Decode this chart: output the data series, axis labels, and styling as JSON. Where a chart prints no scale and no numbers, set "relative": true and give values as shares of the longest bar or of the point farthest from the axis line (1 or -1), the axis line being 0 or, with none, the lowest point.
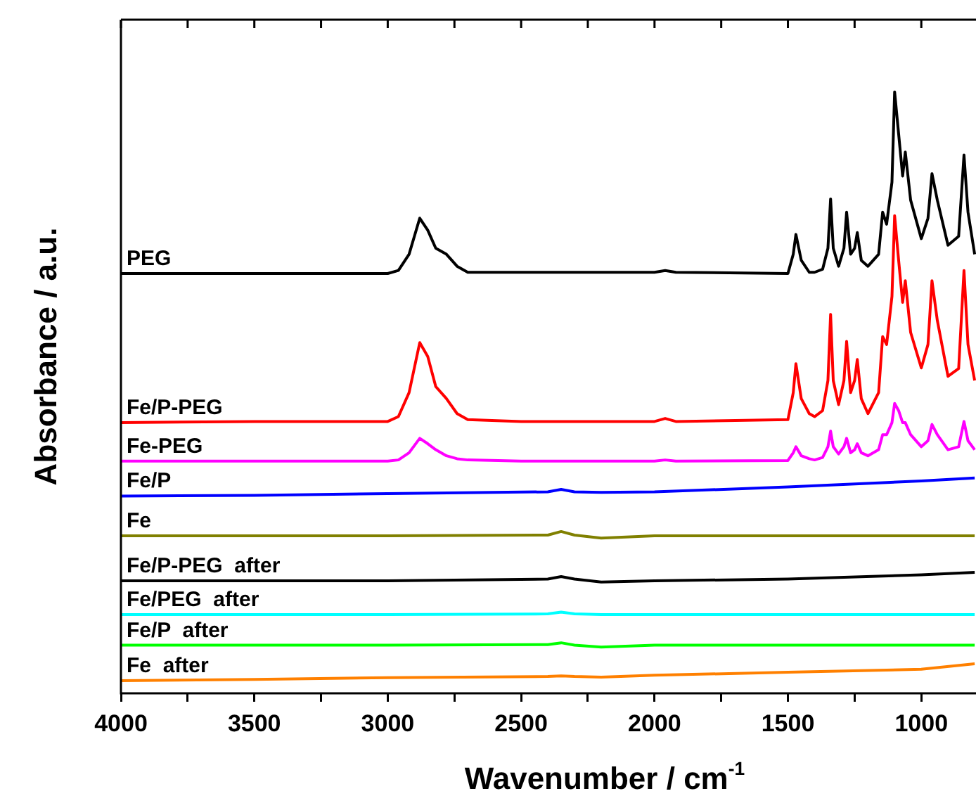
{
  "chart_data": {
    "type": "line",
    "relative": true,
    "xlabel": "Wavenumber / cm$^{-1}$",
    "ylabel": "Absorbance / a.u.",
    "xlim": [
      4000,
      795
    ],
    "xticks": [
      4000,
      {
        "value": 3750,
        "label": null
      },
      3500,
      {
        "value": 3250,
        "label": null
      },
      3000,
      {
        "value": 2750,
        "label": null
      },
      2500,
      {
        "value": 2250,
        "label": null
      },
      2000,
      {
        "value": 1750,
        "label": null
      },
      1500,
      {
        "value": 1250,
        "label": null
      },
      1000
    ],
    "grid": false,
    "legend": false,
    "marker": "none",
    "line_style": "solid",
    "x": [
      4000,
      3500,
      3000,
      2960,
      2920,
      2880,
      2850,
      2820,
      2780,
      2740,
      2700,
      2500,
      2000,
      1960,
      1920,
      1500,
      1480,
      1470,
      1450,
      1420,
      1400,
      1370,
      1350,
      1340,
      1330,
      1310,
      1290,
      1280,
      1265,
      1250,
      1240,
      1225,
      1200,
      1160,
      1145,
      1130,
      1110,
      1100,
      1085,
      1070,
      1060,
      1040,
      1000,
      975,
      960,
      940,
      900,
      860,
      840,
      825,
      800
    ],
    "series": [
      {
        "name": "PEG",
        "color": "#000000",
        "values": [
          0.698,
          0.698,
          0.698,
          0.703,
          0.73,
          0.79,
          0.77,
          0.74,
          0.73,
          0.71,
          0.7,
          0.7,
          0.7,
          0.703,
          0.7,
          0.698,
          0.73,
          0.763,
          0.72,
          0.7,
          0.7,
          0.705,
          0.74,
          0.822,
          0.74,
          0.71,
          0.74,
          0.8,
          0.73,
          0.74,
          0.766,
          0.72,
          0.71,
          0.73,
          0.8,
          0.78,
          0.85,
          1.0,
          0.93,
          0.86,
          0.9,
          0.82,
          0.756,
          0.79,
          0.864,
          0.82,
          0.745,
          0.76,
          0.895,
          0.8,
          0.73
        ]
      },
      {
        "name": "Fe/P-PEG",
        "color": "#ff0000",
        "values": [
          0.45,
          0.452,
          0.452,
          0.46,
          0.5,
          0.583,
          0.56,
          0.51,
          0.49,
          0.465,
          0.455,
          0.452,
          0.452,
          0.457,
          0.452,
          0.455,
          0.5,
          0.548,
          0.49,
          0.465,
          0.46,
          0.47,
          0.52,
          0.63,
          0.52,
          0.48,
          0.52,
          0.585,
          0.5,
          0.52,
          0.555,
          0.49,
          0.465,
          0.5,
          0.593,
          0.58,
          0.66,
          0.794,
          0.72,
          0.65,
          0.686,
          0.6,
          0.541,
          0.58,
          0.686,
          0.62,
          0.527,
          0.54,
          0.703,
          0.58,
          0.52
        ]
      },
      {
        "name": "Fe-PEG",
        "color": "#ff00ff",
        "values": [
          0.386,
          0.386,
          0.386,
          0.388,
          0.4,
          0.424,
          0.415,
          0.405,
          0.395,
          0.39,
          0.388,
          0.386,
          0.386,
          0.388,
          0.386,
          0.387,
          0.4,
          0.41,
          0.395,
          0.39,
          0.388,
          0.392,
          0.41,
          0.436,
          0.41,
          0.398,
          0.41,
          0.424,
          0.4,
          0.405,
          0.415,
          0.4,
          0.395,
          0.405,
          0.43,
          0.43,
          0.45,
          0.482,
          0.47,
          0.45,
          0.45,
          0.43,
          0.41,
          0.42,
          0.447,
          0.43,
          0.405,
          0.41,
          0.452,
          0.42,
          0.405
        ]
      },
      {
        "name": "Fe/P",
        "color": "#0000ff",
        "x": [
          4000,
          3500,
          3000,
          2400,
          2350,
          2300,
          2200,
          2000,
          1500,
          1000,
          800
        ],
        "values": [
          0.328,
          0.329,
          0.332,
          0.335,
          0.339,
          0.335,
          0.334,
          0.335,
          0.343,
          0.353,
          0.358
        ]
      },
      {
        "name": "Fe",
        "color": "#808000",
        "x": [
          4000,
          3500,
          3000,
          2400,
          2350,
          2300,
          2200,
          2000,
          1500,
          1000,
          800
        ],
        "values": [
          0.262,
          0.262,
          0.262,
          0.263,
          0.269,
          0.263,
          0.258,
          0.262,
          0.262,
          0.262,
          0.262
        ]
      },
      {
        "name": "Fe/P-PEG  after",
        "color": "#000000",
        "x": [
          4000,
          3500,
          3000,
          2400,
          2350,
          2300,
          2200,
          2000,
          1500,
          1000,
          800
        ],
        "values": [
          0.187,
          0.187,
          0.187,
          0.19,
          0.194,
          0.19,
          0.185,
          0.187,
          0.19,
          0.197,
          0.201
        ]
      },
      {
        "name": "Fe/PEG  after",
        "color": "#00ffff",
        "x": [
          4000,
          3500,
          3000,
          2400,
          2350,
          2300,
          2200,
          2000,
          1500,
          1000,
          800
        ],
        "values": [
          0.131,
          0.131,
          0.131,
          0.132,
          0.135,
          0.132,
          0.131,
          0.131,
          0.131,
          0.131,
          0.131
        ]
      },
      {
        "name": "Fe/P  after",
        "color": "#00ff00",
        "x": [
          4000,
          3500,
          3000,
          2400,
          2350,
          2300,
          2200,
          2000,
          1500,
          1000,
          800
        ],
        "values": [
          0.08,
          0.08,
          0.08,
          0.081,
          0.084,
          0.08,
          0.077,
          0.08,
          0.08,
          0.08,
          0.08
        ]
      },
      {
        "name": "Fe  after",
        "color": "#ff8000",
        "x": [
          4000,
          3500,
          3000,
          2400,
          2350,
          2300,
          2200,
          2000,
          1500,
          1000,
          800
        ],
        "values": [
          0.021,
          0.023,
          0.026,
          0.028,
          0.029,
          0.028,
          0.027,
          0.03,
          0.035,
          0.04,
          0.049
        ]
      }
    ]
  }
}
